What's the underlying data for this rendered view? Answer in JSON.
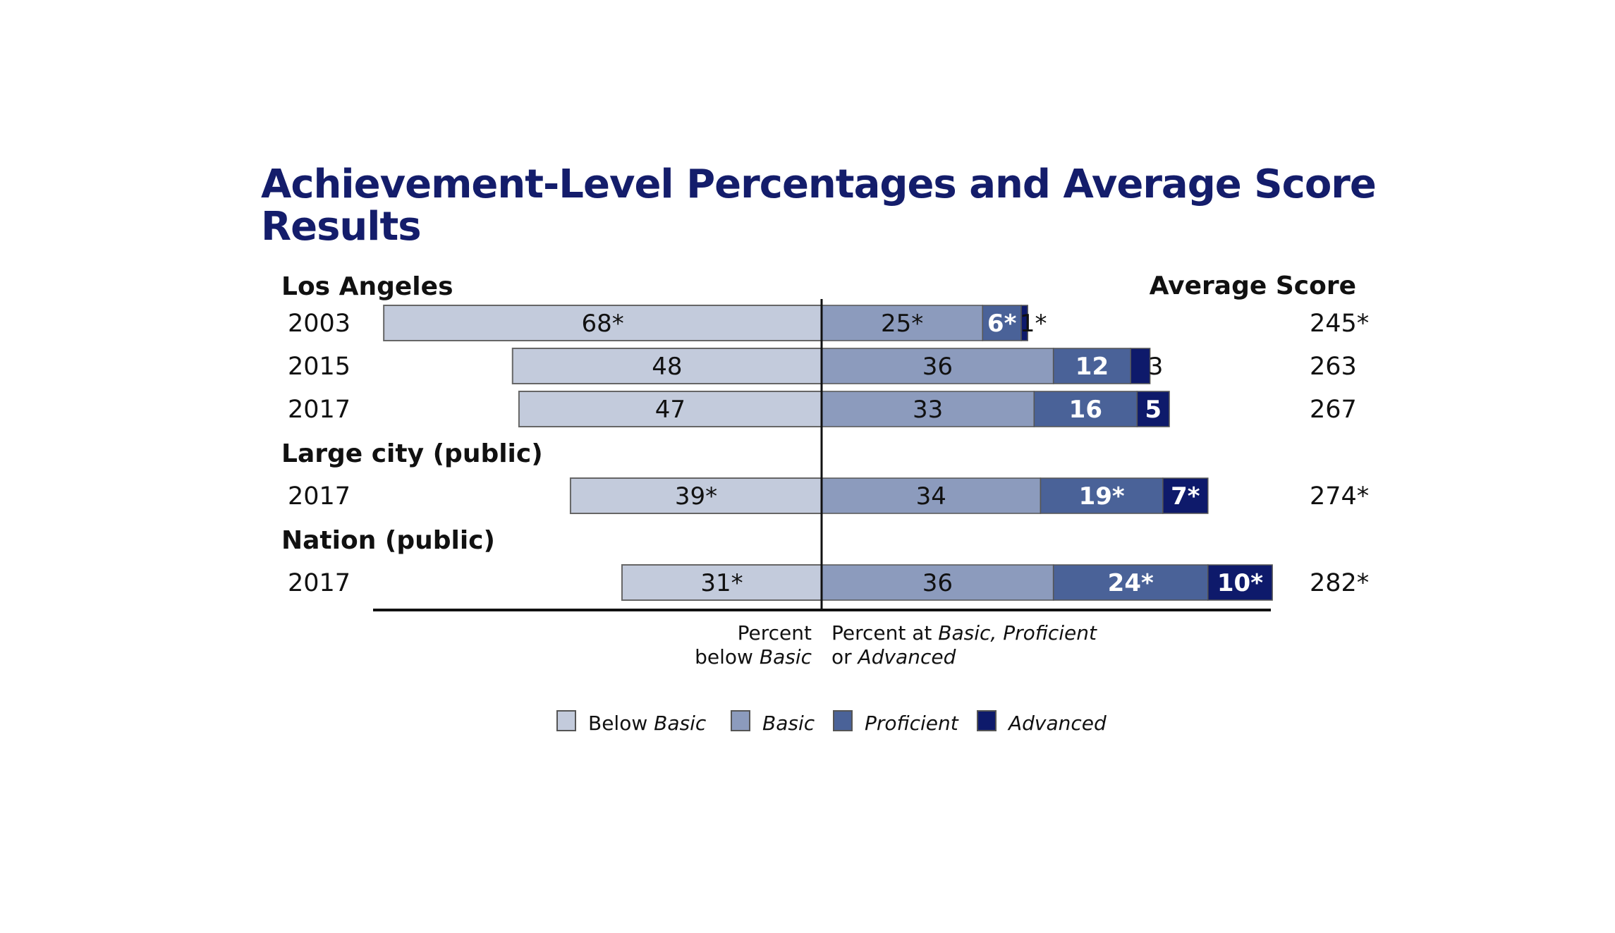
{
  "chart_data": {
    "type": "bar",
    "orientation": "horizontal-diverging-stacked",
    "title": "Achievement-Level Percentages and Average Score Results",
    "score_header": "Average Score",
    "axis_labels": {
      "left": [
        "Percent",
        "below Basic"
      ],
      "right": [
        "Percent at Basic, Proficient",
        "or Advanced"
      ]
    },
    "legend": [
      "Below Basic",
      "Basic",
      "Proficient",
      "Advanced"
    ],
    "colors": {
      "Below Basic": "#c3cbdc",
      "Basic": "#8c9bbd",
      "Proficient": "#4a6298",
      "Advanced": "#0e1a6b",
      "title": "#141d6b"
    },
    "groups": [
      {
        "name": "Los Angeles",
        "rows": [
          {
            "year": "2003",
            "below_basic": 68,
            "basic": 25,
            "proficient": 6,
            "advanced": 1,
            "labels": [
              "68*",
              "25*",
              "6*",
              "1*"
            ],
            "avg_score": "245*"
          },
          {
            "year": "2015",
            "below_basic": 48,
            "basic": 36,
            "proficient": 12,
            "advanced": 3,
            "labels": [
              "48",
              "36",
              "12",
              "3"
            ],
            "avg_score": "263"
          },
          {
            "year": "2017",
            "below_basic": 47,
            "basic": 33,
            "proficient": 16,
            "advanced": 5,
            "labels": [
              "47",
              "33",
              "16",
              "5"
            ],
            "avg_score": "267"
          }
        ]
      },
      {
        "name": "Large city (public)",
        "rows": [
          {
            "year": "2017",
            "below_basic": 39,
            "basic": 34,
            "proficient": 19,
            "advanced": 7,
            "labels": [
              "39*",
              "34",
              "19*",
              "7*"
            ],
            "avg_score": "274*"
          }
        ]
      },
      {
        "name": "Nation (public)",
        "rows": [
          {
            "year": "2017",
            "below_basic": 31,
            "basic": 36,
            "proficient": 24,
            "advanced": 10,
            "labels": [
              "31*",
              "36",
              "24*",
              "10*"
            ],
            "avg_score": "282*"
          }
        ]
      }
    ]
  }
}
